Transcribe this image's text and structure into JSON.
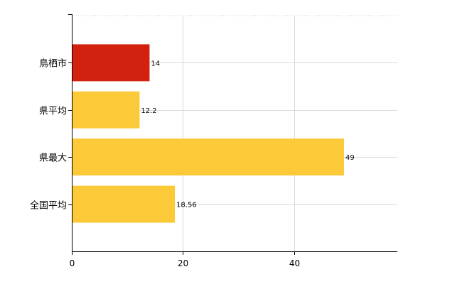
{
  "chart_data": {
    "type": "bar",
    "orientation": "horizontal",
    "categories": [
      "鳥栖市",
      "県平均",
      "県最大",
      "全国平均"
    ],
    "values": [
      14,
      12.2,
      49,
      18.56
    ],
    "value_labels": [
      "14",
      "12.2",
      "49",
      "18.56"
    ],
    "colors": [
      "#d2210f",
      "#fcc938",
      "#fcc938",
      "#fcc938"
    ],
    "xlim": [
      0,
      58.6
    ],
    "xticks": [
      0,
      20,
      40
    ],
    "xtick_labels": [
      "0",
      "20",
      "40"
    ],
    "grid": true,
    "title": "",
    "xlabel": "",
    "ylabel": ""
  }
}
